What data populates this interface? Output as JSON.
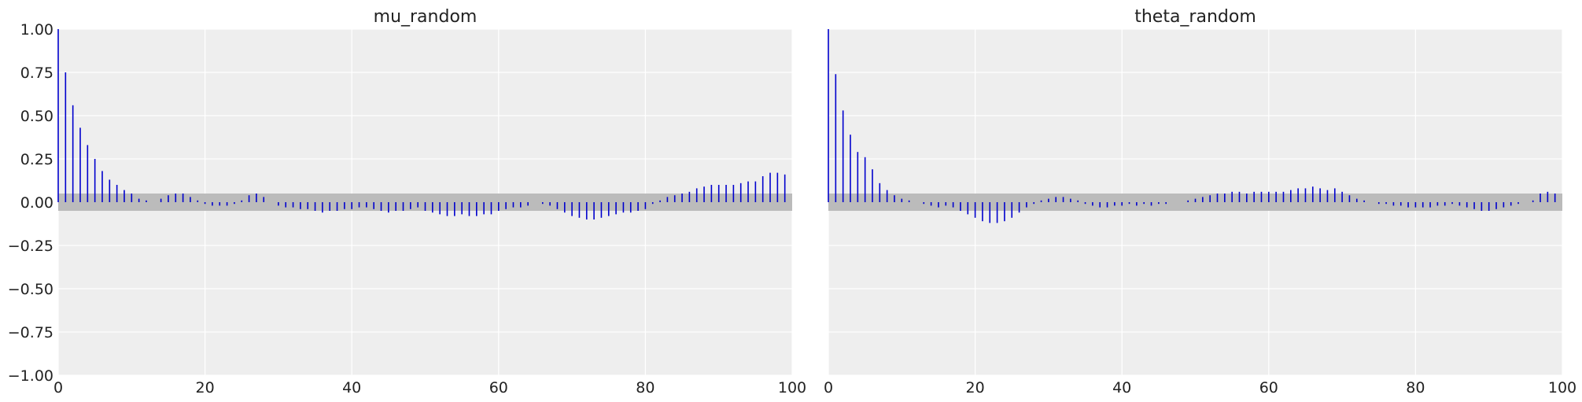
{
  "chart_data": [
    {
      "type": "bar",
      "title": "mu_random",
      "xlabel": "",
      "ylabel": "",
      "xlim": [
        0,
        100
      ],
      "ylim": [
        -1.0,
        1.0
      ],
      "grid": true,
      "confidence_band": [
        -0.05,
        0.05
      ],
      "x_ticks": [
        "0",
        "20",
        "40",
        "60",
        "80",
        "100"
      ],
      "y_ticks": [
        "1.00",
        "0.75",
        "0.50",
        "0.25",
        "0.00",
        "−0.25",
        "−0.50",
        "−0.75",
        "−1.00"
      ],
      "x": [
        0,
        1,
        2,
        3,
        4,
        5,
        6,
        7,
        8,
        9,
        10,
        11,
        12,
        13,
        14,
        15,
        16,
        17,
        18,
        19,
        20,
        21,
        22,
        23,
        24,
        25,
        26,
        27,
        28,
        29,
        30,
        31,
        32,
        33,
        34,
        35,
        36,
        37,
        38,
        39,
        40,
        41,
        42,
        43,
        44,
        45,
        46,
        47,
        48,
        49,
        50,
        51,
        52,
        53,
        54,
        55,
        56,
        57,
        58,
        59,
        60,
        61,
        62,
        63,
        64,
        65,
        66,
        67,
        68,
        69,
        70,
        71,
        72,
        73,
        74,
        75,
        76,
        77,
        78,
        79,
        80,
        81,
        82,
        83,
        84,
        85,
        86,
        87,
        88,
        89,
        90,
        91,
        92,
        93,
        94,
        95,
        96,
        97,
        98,
        99
      ],
      "values": [
        1.0,
        0.75,
        0.56,
        0.43,
        0.33,
        0.25,
        0.18,
        0.13,
        0.1,
        0.07,
        0.05,
        0.02,
        0.01,
        0.0,
        0.02,
        0.04,
        0.05,
        0.05,
        0.03,
        0.01,
        -0.01,
        -0.02,
        -0.02,
        -0.02,
        -0.01,
        0.01,
        0.04,
        0.05,
        0.03,
        0.0,
        -0.02,
        -0.03,
        -0.03,
        -0.04,
        -0.04,
        -0.05,
        -0.06,
        -0.05,
        -0.05,
        -0.04,
        -0.04,
        -0.03,
        -0.03,
        -0.04,
        -0.05,
        -0.06,
        -0.05,
        -0.05,
        -0.04,
        -0.03,
        -0.05,
        -0.06,
        -0.07,
        -0.08,
        -0.08,
        -0.07,
        -0.08,
        -0.08,
        -0.07,
        -0.07,
        -0.05,
        -0.04,
        -0.03,
        -0.03,
        -0.02,
        0.0,
        -0.01,
        -0.02,
        -0.04,
        -0.06,
        -0.08,
        -0.09,
        -0.1,
        -0.1,
        -0.09,
        -0.08,
        -0.07,
        -0.06,
        -0.06,
        -0.05,
        -0.04,
        -0.01,
        0.01,
        0.03,
        0.04,
        0.05,
        0.06,
        0.08,
        0.09,
        0.1,
        0.1,
        0.1,
        0.1,
        0.11,
        0.12,
        0.12,
        0.15,
        0.17,
        0.17,
        0.16
      ],
      "color": "#0000cd"
    },
    {
      "type": "bar",
      "title": "theta_random",
      "xlabel": "",
      "ylabel": "",
      "xlim": [
        0,
        100
      ],
      "ylim": [
        -1.0,
        1.0
      ],
      "grid": true,
      "confidence_band": [
        -0.05,
        0.05
      ],
      "x_ticks": [
        "0",
        "20",
        "40",
        "60",
        "80",
        "100"
      ],
      "y_ticks": [],
      "x": [
        0,
        1,
        2,
        3,
        4,
        5,
        6,
        7,
        8,
        9,
        10,
        11,
        12,
        13,
        14,
        15,
        16,
        17,
        18,
        19,
        20,
        21,
        22,
        23,
        24,
        25,
        26,
        27,
        28,
        29,
        30,
        31,
        32,
        33,
        34,
        35,
        36,
        37,
        38,
        39,
        40,
        41,
        42,
        43,
        44,
        45,
        46,
        47,
        48,
        49,
        50,
        51,
        52,
        53,
        54,
        55,
        56,
        57,
        58,
        59,
        60,
        61,
        62,
        63,
        64,
        65,
        66,
        67,
        68,
        69,
        70,
        71,
        72,
        73,
        74,
        75,
        76,
        77,
        78,
        79,
        80,
        81,
        82,
        83,
        84,
        85,
        86,
        87,
        88,
        89,
        90,
        91,
        92,
        93,
        94,
        95,
        96,
        97,
        98,
        99
      ],
      "values": [
        1.0,
        0.74,
        0.53,
        0.39,
        0.29,
        0.26,
        0.19,
        0.11,
        0.07,
        0.04,
        0.02,
        0.01,
        0.0,
        -0.01,
        -0.02,
        -0.03,
        -0.02,
        -0.03,
        -0.05,
        -0.07,
        -0.09,
        -0.11,
        -0.12,
        -0.12,
        -0.11,
        -0.09,
        -0.06,
        -0.03,
        -0.01,
        0.01,
        0.02,
        0.03,
        0.03,
        0.02,
        0.01,
        -0.01,
        -0.02,
        -0.03,
        -0.03,
        -0.02,
        -0.02,
        -0.01,
        -0.02,
        -0.01,
        -0.02,
        -0.01,
        -0.01,
        0.0,
        0.0,
        0.01,
        0.02,
        0.03,
        0.04,
        0.05,
        0.05,
        0.06,
        0.06,
        0.05,
        0.06,
        0.06,
        0.06,
        0.06,
        0.06,
        0.07,
        0.08,
        0.08,
        0.09,
        0.08,
        0.07,
        0.08,
        0.06,
        0.04,
        0.02,
        0.01,
        0.0,
        -0.01,
        -0.01,
        -0.02,
        -0.02,
        -0.03,
        -0.03,
        -0.03,
        -0.03,
        -0.02,
        -0.02,
        -0.01,
        -0.02,
        -0.03,
        -0.04,
        -0.05,
        -0.05,
        -0.04,
        -0.03,
        -0.02,
        -0.01,
        0.0,
        0.01,
        0.05,
        0.06,
        0.05
      ],
      "color": "#0000cd"
    }
  ],
  "style": {
    "plot_background": "#eeeeee",
    "grid_color": "#ffffff",
    "band_color": "#bbbbbb",
    "text_color": "#222222"
  }
}
